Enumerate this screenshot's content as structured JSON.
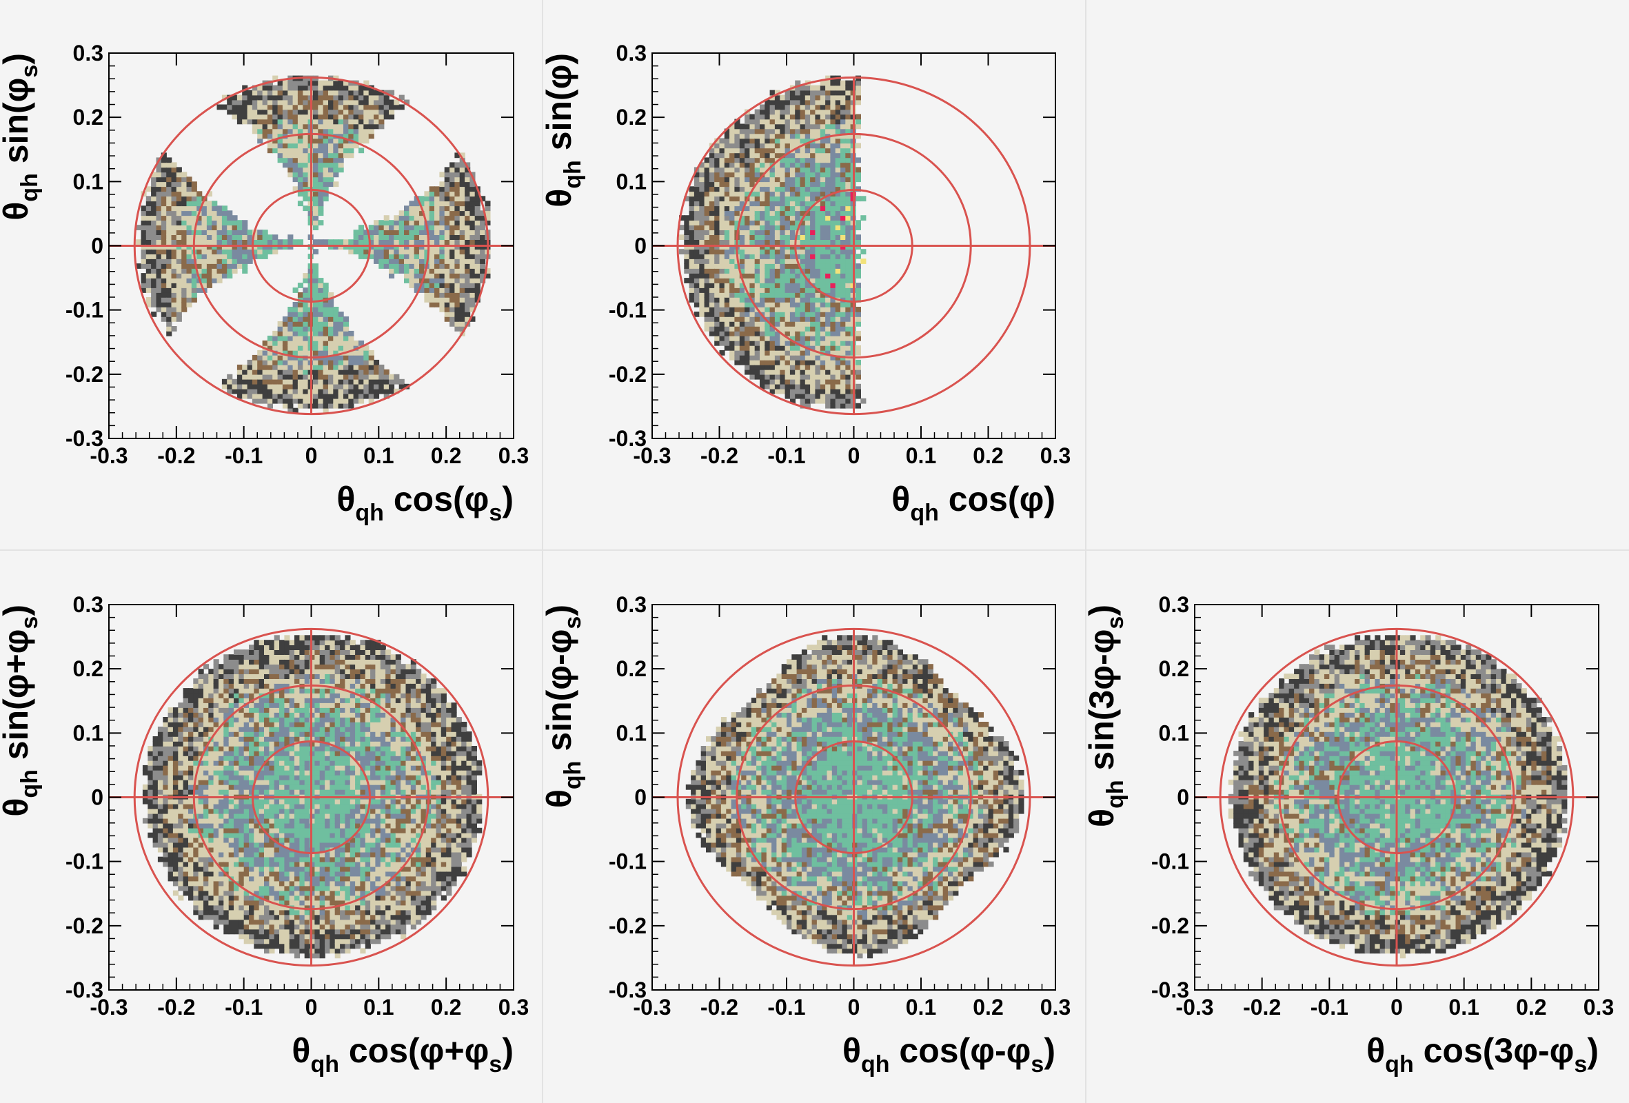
{
  "chart_data": [
    {
      "type": "heatmap",
      "pattern": "four-lobes",
      "xlabel": {
        "main": "θ",
        "sub": "qh",
        "rest": " cos(φ",
        "sub2": "s",
        "tail": ")"
      },
      "ylabel": {
        "main": "θ",
        "sub": "qh",
        "rest": " sin(φ",
        "sub2": "s",
        "tail": ")"
      },
      "xlim": [
        -0.3,
        0.3
      ],
      "ylim": [
        -0.3,
        0.3
      ],
      "xticks": [
        "-0.3",
        "-0.2",
        "-0.1",
        "0",
        "0.1",
        "0.2",
        "0.3"
      ],
      "yticks": [
        "-0.3",
        "-0.2",
        "-0.1",
        "0",
        "0.1",
        "0.2",
        "0.3"
      ],
      "circles": [
        0.087,
        0.174,
        0.262
      ],
      "crosshair": [
        0,
        0
      ],
      "data_extent": 0.26
    },
    {
      "type": "heatmap",
      "pattern": "left-half",
      "xlabel": {
        "main": "θ",
        "sub": "qh",
        "rest": " cos(φ)",
        "sub2": "",
        "tail": ""
      },
      "ylabel": {
        "main": "θ",
        "sub": "qh",
        "rest": " sin(φ)",
        "sub2": "",
        "tail": ""
      },
      "xlim": [
        -0.3,
        0.3
      ],
      "ylim": [
        -0.3,
        0.3
      ],
      "xticks": [
        "-0.3",
        "-0.2",
        "-0.1",
        "0",
        "0.1",
        "0.2",
        "0.3"
      ],
      "yticks": [
        "-0.3",
        "-0.2",
        "-0.1",
        "0",
        "0.1",
        "0.2",
        "0.3"
      ],
      "circles": [
        0.087,
        0.174,
        0.262
      ],
      "crosshair": [
        0,
        0
      ],
      "data_extent": 0.26
    },
    {
      "type": "heatmap",
      "pattern": "full-disk",
      "xlabel": {
        "main": "θ",
        "sub": "qh",
        "rest": " cos(φ+φ",
        "sub2": "s",
        "tail": ")"
      },
      "ylabel": {
        "main": "θ",
        "sub": "qh",
        "rest": " sin(φ+φ",
        "sub2": "s",
        "tail": ")"
      },
      "xlim": [
        -0.3,
        0.3
      ],
      "ylim": [
        -0.3,
        0.3
      ],
      "xticks": [
        "-0.3",
        "-0.2",
        "-0.1",
        "0",
        "0.1",
        "0.2",
        "0.3"
      ],
      "yticks": [
        "-0.3",
        "-0.2",
        "-0.1",
        "0",
        "0.1",
        "0.2",
        "0.3"
      ],
      "circles": [
        0.087,
        0.174,
        0.262
      ],
      "crosshair": [
        0,
        0
      ],
      "data_extent": 0.25
    },
    {
      "type": "heatmap",
      "pattern": "full-disk-flower",
      "xlabel": {
        "main": "θ",
        "sub": "qh",
        "rest": " cos(φ-φ",
        "sub2": "s",
        "tail": ")"
      },
      "ylabel": {
        "main": "θ",
        "sub": "qh",
        "rest": " sin(φ-φ",
        "sub2": "s",
        "tail": ")"
      },
      "xlim": [
        -0.3,
        0.3
      ],
      "ylim": [
        -0.3,
        0.3
      ],
      "xticks": [
        "-0.3",
        "-0.2",
        "-0.1",
        "0",
        "0.1",
        "0.2",
        "0.3"
      ],
      "yticks": [
        "-0.3",
        "-0.2",
        "-0.1",
        "0",
        "0.1",
        "0.2",
        "0.3"
      ],
      "circles": [
        0.087,
        0.174,
        0.262
      ],
      "crosshair": [
        0,
        0
      ],
      "data_extent": 0.25
    },
    {
      "type": "heatmap",
      "pattern": "full-disk",
      "xlabel": {
        "main": "θ",
        "sub": "qh",
        "rest": " cos(3φ-φ",
        "sub2": "s",
        "tail": ")"
      },
      "ylabel": {
        "main": "θ",
        "sub": "qh",
        "rest": " sin(3φ-φ",
        "sub2": "s",
        "tail": ")"
      },
      "xlim": [
        -0.3,
        0.3
      ],
      "ylim": [
        -0.3,
        0.3
      ],
      "xticks": [
        "-0.3",
        "-0.2",
        "-0.1",
        "0",
        "0.1",
        "0.2",
        "0.3"
      ],
      "yticks": [
        "-0.3",
        "-0.2",
        "-0.1",
        "0",
        "0.1",
        "0.2",
        "0.3"
      ],
      "circles": [
        0.087,
        0.174,
        0.262
      ],
      "crosshair": [
        0,
        0
      ],
      "data_extent": 0.25
    }
  ],
  "colors": {
    "background": "#f4f4f4",
    "circle": "#d9534f",
    "outer_dark": "#3f3f3f",
    "outer_grey": "#8c8c8c",
    "tan": "#d6cfb0",
    "brown": "#8a6a4a",
    "slate": "#7a8aa0",
    "teal": "#6fbf9f",
    "hot": "#e8205a",
    "yellow": "#f2e27a"
  }
}
